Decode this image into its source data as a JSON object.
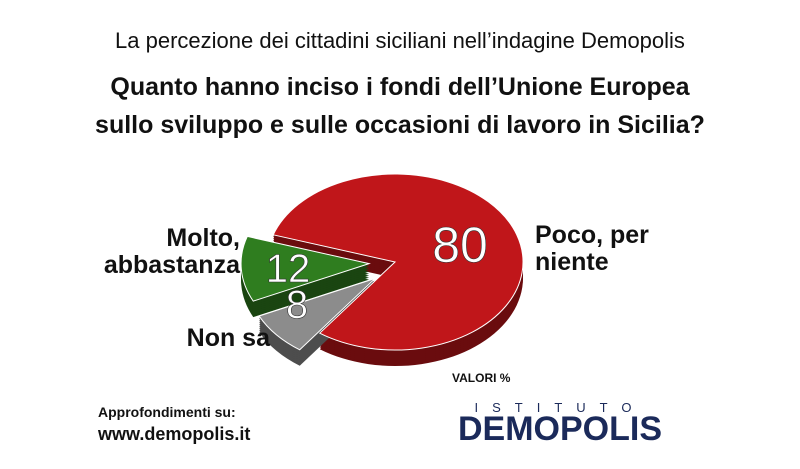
{
  "chart_data": {
    "type": "pie",
    "title": "La percezione dei cittadini siciliani nell’indagine Demopolis",
    "subtitle": [
      "Quanto hanno inciso i fondi dell’Unione Europea",
      "sullo sviluppo e sulle occasioni di lavoro in Sicilia?"
    ],
    "categories": [
      "Poco, per niente",
      "Non sa",
      "Molto, abbastanza"
    ],
    "values": [
      80,
      8,
      12
    ],
    "colors": [
      "#c0161a",
      "#8c8c8c",
      "#2f7d1f"
    ],
    "unit_note": "VALORI %"
  },
  "footer": {
    "label": "Approfondimenti su:",
    "url": "www.demopolis.it",
    "logo_top": "ISTITUTO",
    "logo": "DEMOPOLIS"
  }
}
